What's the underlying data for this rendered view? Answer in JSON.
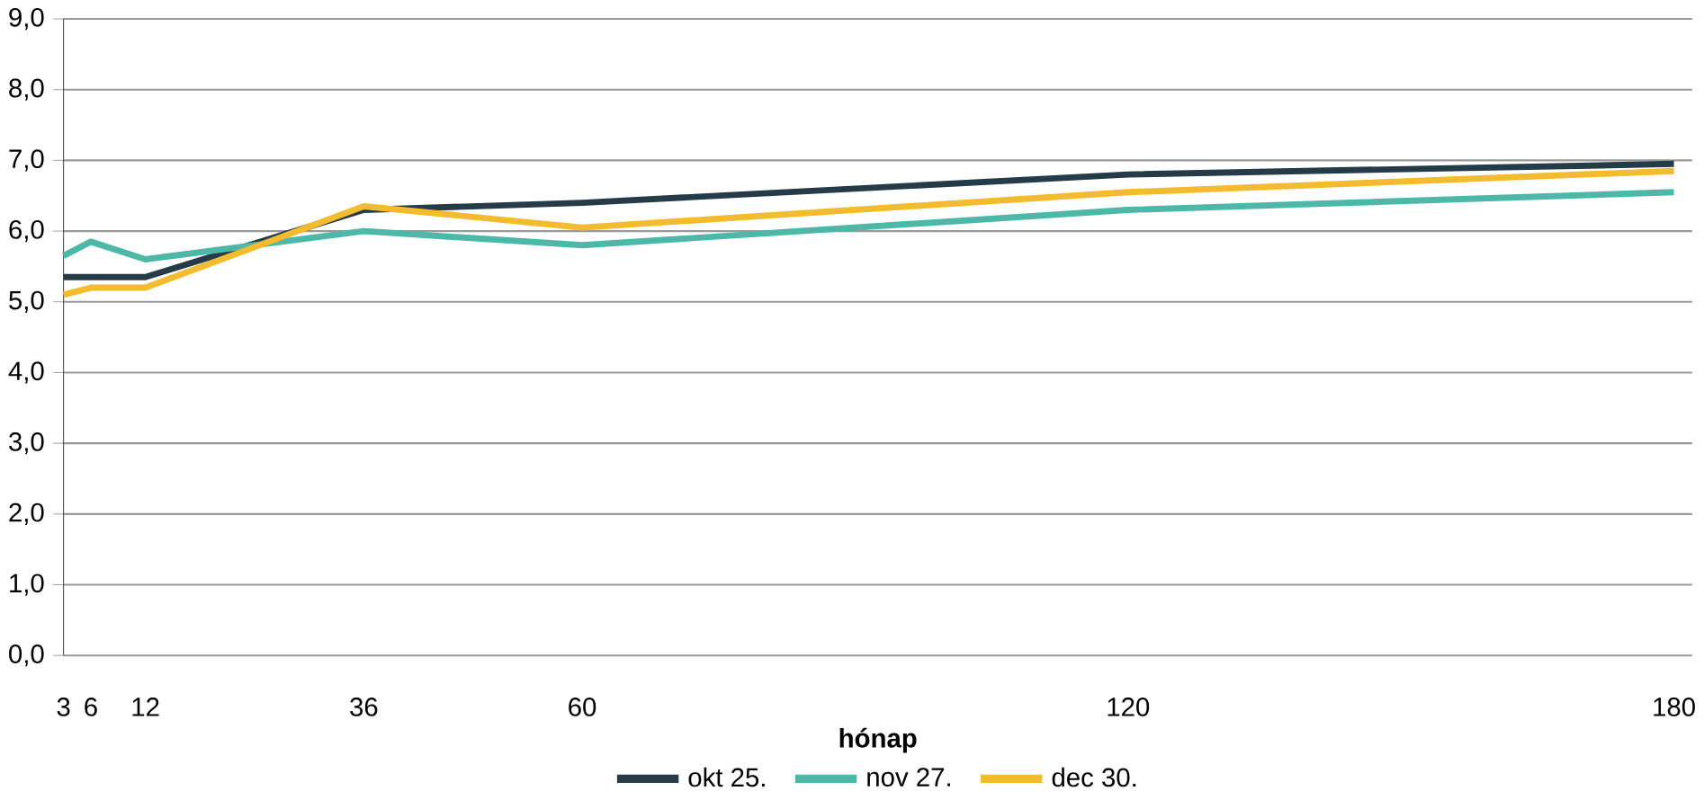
{
  "chart_data": {
    "type": "line",
    "xlabel": "hónap",
    "x": [
      3,
      6,
      12,
      36,
      60,
      120,
      180
    ],
    "series": [
      {
        "name": "okt 25.",
        "color": "#253b47",
        "values": [
          5.35,
          5.35,
          5.35,
          6.3,
          6.4,
          6.8,
          6.95
        ]
      },
      {
        "name": "nov 27.",
        "color": "#4db8a8",
        "values": [
          5.65,
          5.85,
          5.6,
          6.0,
          5.8,
          6.3,
          6.55
        ]
      },
      {
        "name": "dec 30.",
        "color": "#f2bc2e",
        "values": [
          5.1,
          5.2,
          5.2,
          6.35,
          6.05,
          6.55,
          6.85
        ]
      }
    ],
    "xlim": [
      3,
      182
    ],
    "xticks": [
      3,
      6,
      12,
      36,
      60,
      120,
      180
    ],
    "ylim": [
      0,
      9
    ],
    "yticks": [
      {
        "value": 0,
        "label": "0,0"
      },
      {
        "value": 1,
        "label": "1,0"
      },
      {
        "value": 2,
        "label": "2,0"
      },
      {
        "value": 3,
        "label": "3,0"
      },
      {
        "value": 4,
        "label": "4,0"
      },
      {
        "value": 5,
        "label": "5,0"
      },
      {
        "value": 6,
        "label": "6,0"
      },
      {
        "value": 7,
        "label": "7,0"
      },
      {
        "value": 8,
        "label": "8,0"
      },
      {
        "value": 9,
        "label": "9,0"
      }
    ],
    "grid": "y",
    "legend": "bottom",
    "marker": "none",
    "line_style": "solid"
  }
}
